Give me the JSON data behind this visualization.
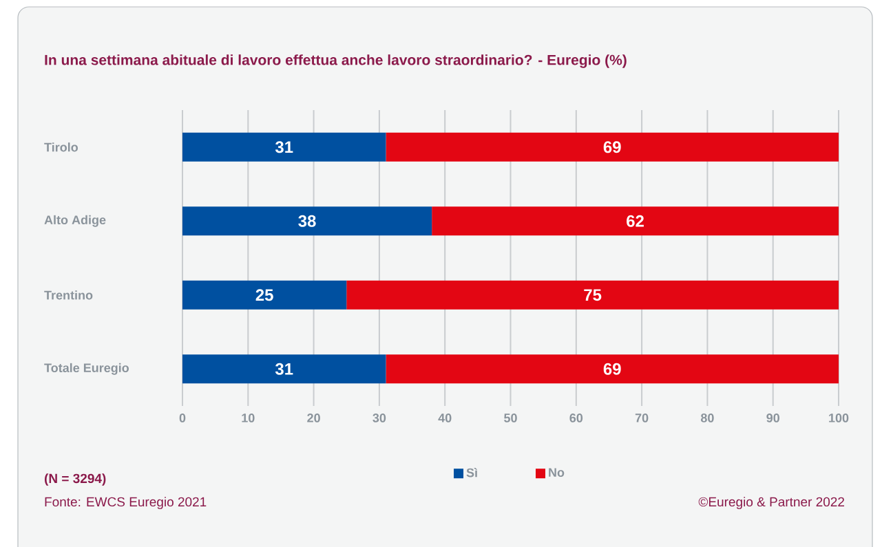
{
  "chart_data": {
    "type": "bar",
    "orientation": "horizontal",
    "stacked": true,
    "title": "In una settimana abituale di lavoro effettua anche lavoro straordinario? - Euregio (%)",
    "categories": [
      "Tirolo",
      "Alto Adige",
      "Trentino",
      "Totale Euregio"
    ],
    "series": [
      {
        "name": "Sì",
        "color": "#0050a0",
        "values": [
          31,
          38,
          25,
          31
        ]
      },
      {
        "name": "No",
        "color": "#e30613",
        "values": [
          69,
          62,
          75,
          69
        ]
      }
    ],
    "xlim": [
      0,
      100
    ],
    "xticks": [
      0,
      10,
      20,
      30,
      40,
      50,
      60,
      70,
      80,
      90,
      100
    ],
    "grid": "x",
    "legend": "bottom",
    "data_labels": true,
    "annotations": [
      "(N = 3294)",
      "Fonte: EWCS Euregio 2021",
      "©Euregio & Partner 2022"
    ]
  }
}
